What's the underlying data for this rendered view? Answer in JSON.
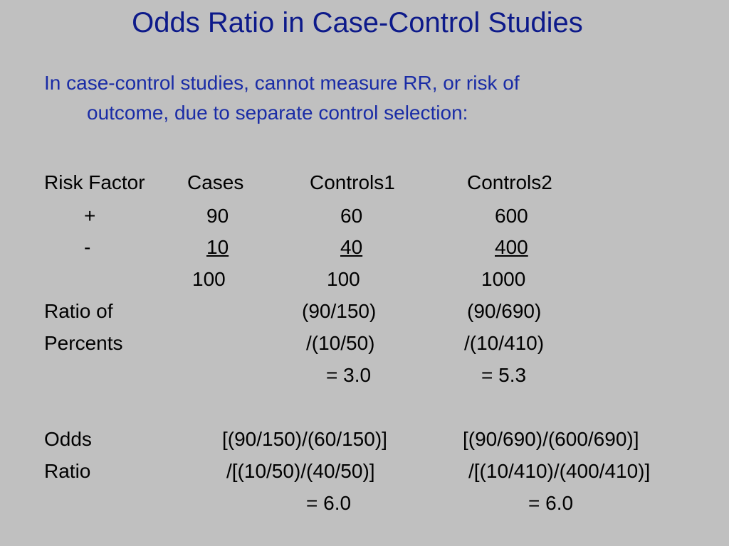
{
  "title": "Odds Ratio in Case-Control Studies",
  "intro": {
    "line1": "In case-control studies, cannot measure RR, or risk of",
    "line2": "outcome, due to separate control selection:"
  },
  "table": {
    "headers": {
      "risk_factor": "Risk Factor",
      "cases": "Cases",
      "controls1": "Controls1",
      "controls2": "Controls2"
    },
    "rows": [
      {
        "label": "+",
        "cases": "90",
        "controls1": "60",
        "controls2": "600"
      },
      {
        "label": "-",
        "cases": "10",
        "controls1": "40",
        "controls2": "400"
      }
    ],
    "totals": {
      "cases": "100",
      "controls1": "100",
      "controls2": "1000"
    }
  },
  "ratio_of_percents": {
    "label_line1": "Ratio of",
    "label_line2": "Percents",
    "controls1": [
      "(90/150)",
      "/(10/50)",
      "= 3.0"
    ],
    "controls2": [
      "(90/690)",
      "/(10/410)",
      "= 5.3"
    ]
  },
  "odds_ratio": {
    "label_line1": "Odds",
    "label_line2": "Ratio",
    "controls1": [
      "[(90/150)/(60/150)]",
      "/[(10/50)/(40/50)]",
      "= 6.0"
    ],
    "controls2": [
      "[(90/690)/(600/690)]",
      "/[(10/410)/(400/410)]",
      "= 6.0"
    ]
  }
}
